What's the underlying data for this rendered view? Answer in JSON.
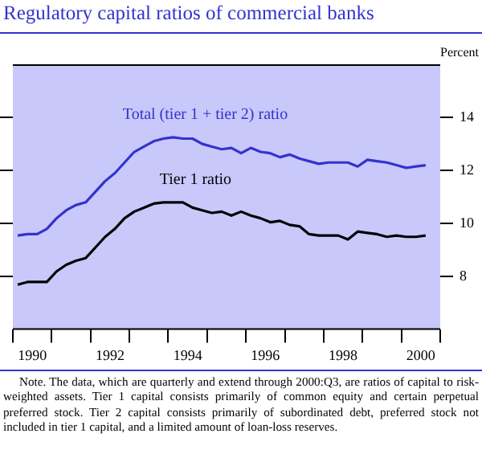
{
  "chart_data": {
    "type": "line",
    "title": "Regulatory capital ratios of commercial banks",
    "ylabel": "Percent",
    "x": [
      1990.125,
      1990.375,
      1990.625,
      1990.875,
      1991.125,
      1991.375,
      1991.625,
      1991.875,
      1992.125,
      1992.375,
      1992.625,
      1992.875,
      1993.125,
      1993.375,
      1993.625,
      1993.875,
      1994.125,
      1994.375,
      1994.625,
      1994.875,
      1995.125,
      1995.375,
      1995.625,
      1995.875,
      1996.125,
      1996.375,
      1996.625,
      1996.875,
      1997.125,
      1997.375,
      1997.625,
      1997.875,
      1998.125,
      1998.375,
      1998.625,
      1998.875,
      1999.125,
      1999.375,
      1999.625,
      1999.875,
      2000.125,
      2000.375,
      2000.625
    ],
    "series": [
      {
        "name": "Total (tier 1 + tier 2) ratio",
        "color": "#3333cc",
        "values": [
          9.55,
          9.6,
          9.6,
          9.8,
          10.2,
          10.5,
          10.7,
          10.8,
          11.2,
          11.6,
          11.9,
          12.3,
          12.7,
          12.9,
          13.1,
          13.2,
          13.25,
          13.2,
          13.2,
          13.0,
          12.9,
          12.8,
          12.85,
          12.65,
          12.85,
          12.7,
          12.65,
          12.5,
          12.6,
          12.45,
          12.35,
          12.25,
          12.3,
          12.3,
          12.3,
          12.15,
          12.4,
          12.35,
          12.3,
          12.2,
          12.1,
          12.15,
          12.2
        ]
      },
      {
        "name": "Tier 1 ratio",
        "color": "#000000",
        "values": [
          7.7,
          7.8,
          7.8,
          7.8,
          8.2,
          8.45,
          8.6,
          8.7,
          9.1,
          9.5,
          9.8,
          10.2,
          10.45,
          10.6,
          10.75,
          10.8,
          10.8,
          10.8,
          10.6,
          10.5,
          10.4,
          10.45,
          10.3,
          10.45,
          10.3,
          10.2,
          10.05,
          10.1,
          9.95,
          9.9,
          9.6,
          9.55,
          9.55,
          9.55,
          9.4,
          9.7,
          9.65,
          9.6,
          9.5,
          9.55,
          9.5,
          9.5,
          9.55
        ]
      }
    ],
    "xlim": [
      1990,
      2001
    ],
    "xticks": [
      {
        "value": 1990,
        "label": null
      },
      {
        "value": 1990.5,
        "label": "1990"
      },
      {
        "value": 1991,
        "label": null
      },
      {
        "value": 1992,
        "label": null
      },
      {
        "value": 1992.5,
        "label": "1992"
      },
      {
        "value": 1993,
        "label": null
      },
      {
        "value": 1994,
        "label": null
      },
      {
        "value": 1994.5,
        "label": "1994"
      },
      {
        "value": 1995,
        "label": null
      },
      {
        "value": 1996,
        "label": null
      },
      {
        "value": 1996.5,
        "label": "1996"
      },
      {
        "value": 1997,
        "label": null
      },
      {
        "value": 1998,
        "label": null
      },
      {
        "value": 1998.5,
        "label": "1998"
      },
      {
        "value": 1999,
        "label": null
      },
      {
        "value": 2000,
        "label": null
      },
      {
        "value": 2000.5,
        "label": "2000"
      },
      {
        "value": 2001,
        "label": null
      }
    ],
    "ylim": [
      6,
      16
    ],
    "yticks": [
      8,
      10,
      12,
      14
    ],
    "grid": false,
    "legend": false,
    "marker": "none",
    "line_style": "solid",
    "annotations": [
      "Note. The data, which are quarterly and extend through 2000:Q3, are ratios of capital to risk-weighted assets. Tier 1 capital consists primarily of common equity and certain perpetual preferred stock. Tier 2 capital consists primarily of subordinated debt, preferred stock not included in tier 1 capital, and a limited amount of loan-loss reserves."
    ]
  }
}
